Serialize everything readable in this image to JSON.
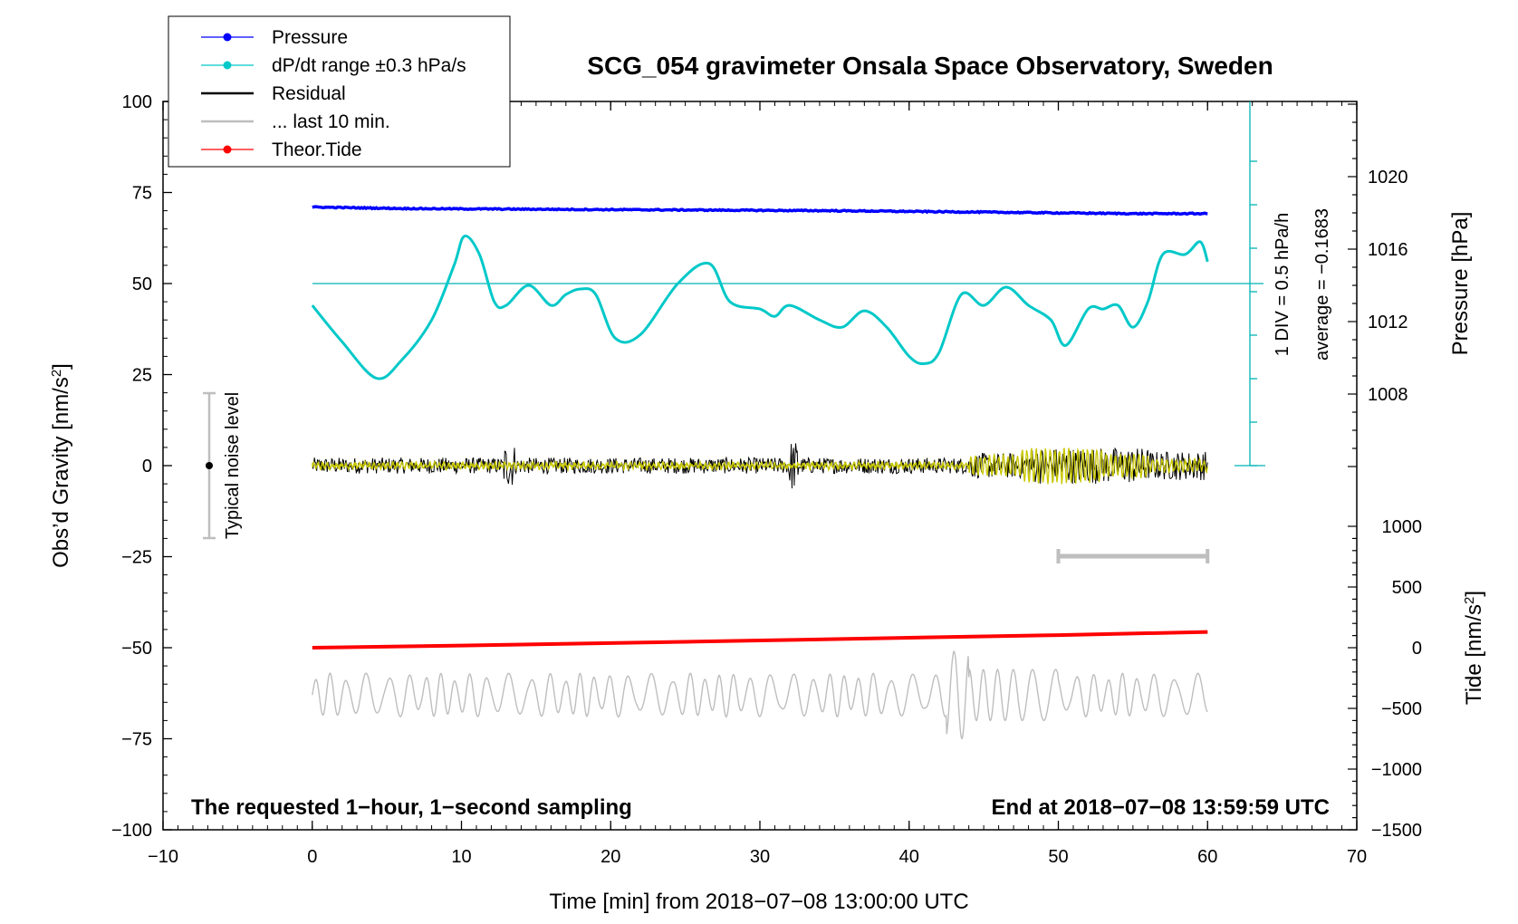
{
  "chart_data": {
    "type": "line",
    "title": "SCG_054 gravimeter Onsala Space Observatory, Sweden",
    "xlabel": "Time [min] from 2018−07−08 13:00:00 UTC",
    "ylabel_left": "Obs’d Gravity [nm/s2]",
    "ylabel_left_parts": {
      "base": "Obs’d Gravity [nm/s",
      "sup": "2",
      "end": "]"
    },
    "ylabel_pressure": "Pressure [hPa]",
    "ylabel_tide_parts": {
      "base": "Tide [nm/s",
      "sup": "2",
      "end": "]"
    },
    "xlim": [
      -10,
      70
    ],
    "ylim_left": [
      -100,
      100
    ],
    "pressure_range": [
      1004,
      1024
    ],
    "tide_range": [
      -1500,
      1500
    ],
    "x_ticks": [
      "−10",
      "0",
      "10",
      "20",
      "30",
      "40",
      "50",
      "60",
      "70"
    ],
    "y_ticks_left": [
      "100",
      "75",
      "50",
      "25",
      "0",
      "−25",
      "−50",
      "−75",
      "−100"
    ],
    "y_ticks_pressure": [
      "1020",
      "1016",
      "1012",
      "1008"
    ],
    "y_ticks_tide": [
      "1000",
      "500",
      "0",
      "−500",
      "−1000",
      "−1500"
    ],
    "legend": [
      {
        "label": "Pressure",
        "color": "#0000ff",
        "marker": true
      },
      {
        "label": "dP/dt range ±0.3 hPa/s",
        "color": "#00c8c8",
        "marker": true
      },
      {
        "label": "Residual",
        "color": "#000000",
        "marker": false
      },
      {
        "label": "... last 10 min.",
        "color": "#bebebe",
        "marker": false
      },
      {
        "label": "Theor.Tide",
        "color": "#ff0000",
        "marker": true
      }
    ],
    "annotations": {
      "noise_label": "Typical noise level",
      "div_label": "1 DIV = 0.5 hPa/h",
      "average_label": "average = −0.1683",
      "bottom_left": "The requested 1−hour, 1−second sampling",
      "bottom_right": "End at 2018−07−08 13:59:59 UTC"
    },
    "series": [
      {
        "name": "Pressure",
        "axis": "left",
        "color": "#0000ff",
        "x": [
          0,
          3,
          6,
          10,
          15,
          20,
          25,
          30,
          35,
          40,
          45,
          50,
          55,
          60
        ],
        "y": [
          71,
          70.8,
          70.6,
          70.5,
          70.4,
          70.3,
          70.2,
          70.1,
          70.0,
          69.8,
          69.6,
          69.4,
          69.2,
          69.2
        ]
      },
      {
        "name": "dP/dt",
        "axis": "left",
        "color": "#00c8c8",
        "x": [
          0,
          2,
          4.3,
          6,
          8,
          9.5,
          10.2,
          11.2,
          12.2,
          13,
          14.5,
          16,
          17,
          18,
          19,
          20.3,
          22,
          24.5,
          26.6,
          28,
          30,
          31,
          32,
          34,
          35.5,
          37,
          38.5,
          40,
          41,
          42,
          43.5,
          45,
          46.5,
          48,
          49.5,
          50.5,
          52,
          53,
          54,
          55,
          56,
          57,
          58.5,
          59.5,
          60
        ],
        "y": [
          44,
          34,
          24,
          29,
          40,
          55,
          63,
          58,
          45,
          44,
          49.5,
          44,
          47,
          48.5,
          47,
          35,
          36,
          50,
          55.5,
          45,
          43,
          41,
          44,
          40,
          38,
          42.5,
          38,
          30,
          28,
          31,
          47,
          44,
          49,
          44,
          40,
          33,
          43,
          43,
          44,
          38,
          45,
          58,
          58,
          61.5,
          56
        ]
      },
      {
        "name": "Residual",
        "axis": "left",
        "color": "#000000",
        "x": [
          0,
          10,
          13,
          20,
          30,
          32,
          40,
          45,
          50,
          60
        ],
        "y": [
          0,
          0,
          0,
          0,
          0,
          0,
          0,
          0,
          0,
          0
        ]
      },
      {
        "name": "Residual filtered",
        "axis": "left",
        "color": "#c8c800",
        "x": [
          0,
          20,
          40,
          45,
          50,
          55,
          60
        ],
        "y": [
          0,
          0,
          0,
          0,
          0,
          0,
          0
        ]
      },
      {
        "name": "Theor.Tide",
        "axis": "tide",
        "color": "#ff0000",
        "x": [
          0,
          10,
          20,
          30,
          40,
          50,
          60
        ],
        "y": [
          0,
          18,
          38,
          60,
          82,
          104,
          130
        ]
      },
      {
        "name": "last 10 min.",
        "axis": "left",
        "color": "#bebebe",
        "x": [
          0,
          10,
          20,
          30,
          40,
          43,
          50,
          60
        ],
        "y": [
          -63,
          -63,
          -63,
          -63,
          -63,
          -63,
          -63,
          -63
        ]
      }
    ],
    "bracket_last10": [
      50,
      60
    ]
  }
}
